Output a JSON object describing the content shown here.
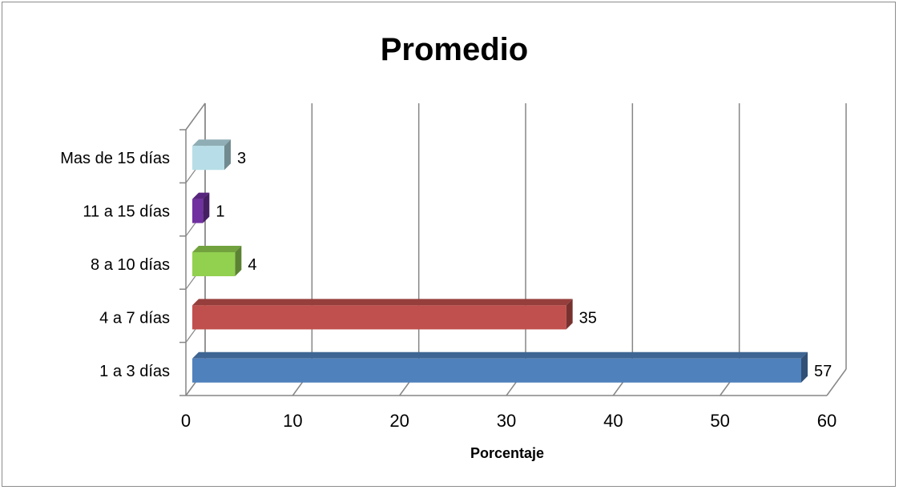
{
  "chart_data": {
    "type": "bar",
    "orientation": "horizontal",
    "style": "3d",
    "title": "Promedio",
    "xlabel": "Porcentaje",
    "ylabel": "",
    "categories": [
      "1 a 3 días",
      "4 a 7 días",
      "8 a 10 días",
      "11 a 15 días",
      "Mas de 15 días"
    ],
    "values": [
      57,
      35,
      4,
      1,
      3
    ],
    "data_labels": [
      "57",
      "35",
      "4",
      "1",
      "3"
    ],
    "colors": [
      "#4f81bd",
      "#c0504d",
      "#92d050",
      "#7030a0",
      "#b7dee8"
    ],
    "xlim": [
      0,
      60
    ],
    "xticks": [
      0,
      10,
      20,
      30,
      40,
      50,
      60
    ],
    "xtick_labels": [
      "0",
      "10",
      "20",
      "30",
      "40",
      "50",
      "60"
    ],
    "grid": true,
    "legend": "none"
  }
}
